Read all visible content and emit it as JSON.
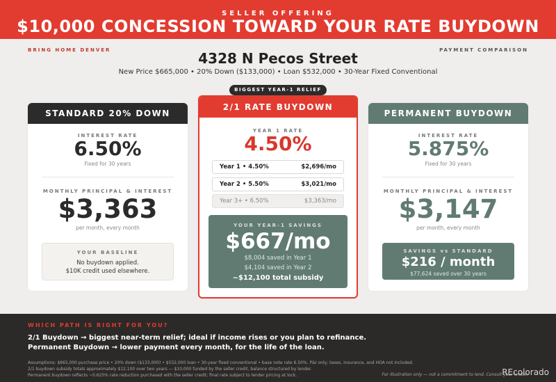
{
  "banner": {
    "kicker": "SELLER OFFERING",
    "headline": "$10,000 CONCESSION TOWARD YOUR RATE BUYDOWN"
  },
  "header": {
    "brand": "BRING HOME DENVER",
    "section": "PAYMENT COMPARISON",
    "address": "4328 N Pecos Street",
    "subline": "New Price $665,000  •  20% Down ($133,000)  •  Loan $532,000  •  30-Year Fixed Conventional"
  },
  "standard": {
    "title": "STANDARD 20% DOWN",
    "rate_label": "INTEREST RATE",
    "rate": "6.50%",
    "rate_note": "Fixed for 30 years",
    "pi_label": "MONTHLY PRINCIPAL & INTEREST",
    "pi": "$3,363",
    "pi_note": "per month, every month",
    "baseline_title": "YOUR BASELINE",
    "baseline_line1": "No buydown applied.",
    "baseline_line2": "$10K credit used elsewhere."
  },
  "buydown": {
    "badge": "BIGGEST YEAR-1 RELIEF",
    "title": "2/1 RATE BUYDOWN",
    "rate_label": "YEAR 1 RATE",
    "rate": "4.50%",
    "years": [
      {
        "label": "Year 1 • 4.50%",
        "amount": "$2,696/mo"
      },
      {
        "label": "Year 2 • 5.50%",
        "amount": "$3,021/mo"
      },
      {
        "label": "Year 3+ • 6.50%",
        "amount": "$3,363/mo"
      }
    ],
    "savings_label": "YOUR YEAR-1 SAVINGS",
    "savings_value": "$667/mo",
    "saved_y1": "$8,004 saved in Year 1",
    "saved_y2": "$4,104 saved in Year 2",
    "subsidy": "~$12,100 total subsidy"
  },
  "permanent": {
    "title": "PERMANENT BUYDOWN",
    "rate_label": "INTEREST RATE",
    "rate": "5.875%",
    "rate_note": "Fixed for 30 years",
    "pi_label": "MONTHLY PRINCIPAL & INTEREST",
    "pi": "$3,147",
    "pi_note": "per month, every month",
    "savings_label": "SAVINGS vs STANDARD",
    "savings_value": "$216 / month",
    "savings_note": "$77,624 saved over 30 years"
  },
  "footer": {
    "question": "WHICH PATH IS RIGHT FOR YOU?",
    "path1": "2/1 Buydown → biggest near-term relief; ideal if income rises or you plan to refinance.",
    "path2": "Permanent Buydown → lower payment every month, for the life of the loan.",
    "assumptions": "Assumptions: $665,000 purchase price • 20% down ($133,000) • $532,000 loan • 30-year fixed conventional • base note rate 6.50%. P&I only; taxes, insurance, and HOA not included.",
    "note2": "2/1 buydown subsidy totals approximately $12,100 over two years — $10,000 funded by the seller credit, balance structured by lender.",
    "note3": "Permanent buydown reflects ~0.625% rate reduction purchased with the seller credit; final rate subject to lender pricing at lock.",
    "illustration": "For illustration only — not a commitment to lend. Consult your lender."
  },
  "watermark": "REcolorado",
  "colors": {
    "accent_red": "#e23b30",
    "dark": "#2b2b2b",
    "sage": "#617b72"
  }
}
